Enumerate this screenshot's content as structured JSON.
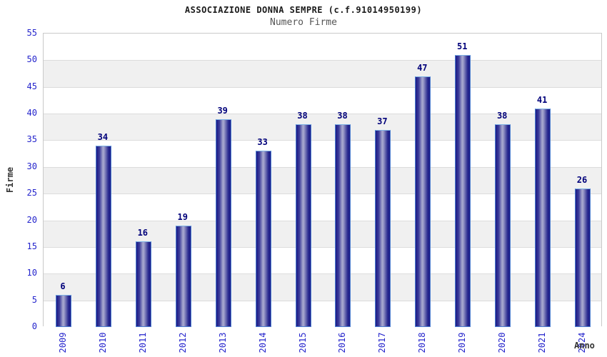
{
  "chart_data": {
    "type": "bar",
    "title": "ASSOCIAZIONE DONNA SEMPRE (c.f.91014950199)",
    "subtitle": "Numero Firme",
    "xlabel": "Anno",
    "ylabel": "Firme",
    "categories": [
      "2009",
      "2010",
      "2011",
      "2012",
      "2013",
      "2014",
      "2015",
      "2016",
      "2017",
      "2018",
      "2019",
      "2020",
      "2021",
      "2024"
    ],
    "values": [
      6,
      34,
      16,
      19,
      39,
      33,
      38,
      38,
      37,
      47,
      51,
      38,
      41,
      26
    ],
    "ylim": [
      0,
      55
    ],
    "ytick_step": 5,
    "legend": "none",
    "grid": "horizontal-bands",
    "band_colors": [
      "#ffffff",
      "#f0f0f0"
    ],
    "colors": {
      "bar_dark": "#1b1b86",
      "bar_light": "#a9a9cf",
      "bar_border": "#4d7fd0",
      "bar_border_top": "#7fb2e5",
      "tick_label": "#2424cc",
      "value_label": "#00007a",
      "title": "#1a1a1a",
      "subtitle": "#555555",
      "axis_title": "#333333",
      "grid_line": "#dcdcdc",
      "plot_border": "#c9c9c9",
      "background": "#ffffff"
    }
  }
}
